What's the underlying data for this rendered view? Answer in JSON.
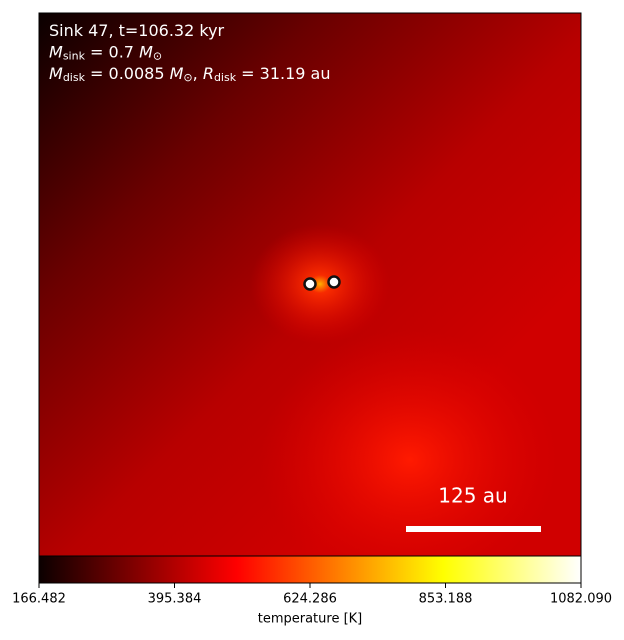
{
  "chart_data": {
    "type": "heatmap",
    "annotations": [
      [
        {
          "text": "Sink 47, t=106.32 kyr"
        }
      ],
      [
        {
          "text": "M",
          "italic": true
        },
        {
          "text": "sink",
          "sub": true
        },
        {
          "text": " = 0.7 "
        },
        {
          "text": "M",
          "italic": true
        },
        {
          "text": "⊙",
          "sub": true
        }
      ],
      [
        {
          "text": "M",
          "italic": true
        },
        {
          "text": "disk",
          "sub": true
        },
        {
          "text": " = 0.0085 "
        },
        {
          "text": "M",
          "italic": true
        },
        {
          "text": "⊙",
          "sub": true
        },
        {
          "text": ", "
        },
        {
          "text": "R",
          "italic": true
        },
        {
          "text": "disk",
          "sub": true
        },
        {
          "text": " = 31.19 au"
        }
      ]
    ],
    "scale_bar_label": "125 au",
    "colorbar": {
      "label": "temperature [K]",
      "colormap": "hot",
      "xlim": [
        166.482,
        1082.09
      ],
      "xticks": [
        166.482,
        395.384,
        624.286,
        853.188,
        {
          "value": 1082.09,
          "label": "1082.090"
        }
      ]
    }
  }
}
